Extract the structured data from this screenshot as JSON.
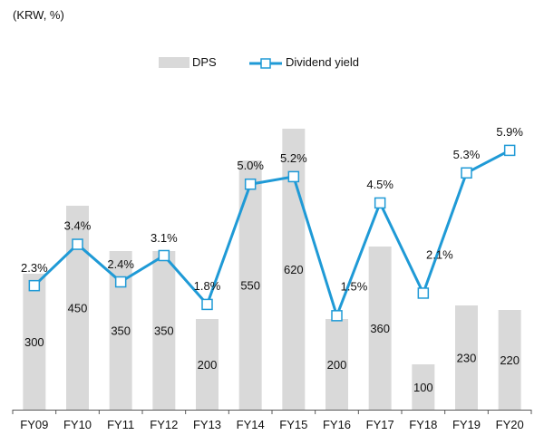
{
  "unit_label": "(KRW, %)",
  "legend": {
    "bar_label": "DPS",
    "line_label": "Dividend yield"
  },
  "colors": {
    "bar": "#d9d9d9",
    "line": "#1f9ad6",
    "marker_fill": "#ffffff",
    "axis": "#595959",
    "text": "#111111"
  },
  "chart_data": {
    "type": "bar",
    "title": "",
    "xlabel": "",
    "ylabel": "",
    "categories": [
      "FY09",
      "FY10",
      "FY11",
      "FY12",
      "FY13",
      "FY14",
      "FY15",
      "FY16",
      "FY17",
      "FY18",
      "FY19",
      "FY20"
    ],
    "series": [
      {
        "name": "DPS",
        "type": "bar",
        "values": [
          300,
          450,
          350,
          350,
          200,
          550,
          620,
          200,
          360,
          100,
          230,
          220
        ],
        "labels": [
          "300",
          "450",
          "350",
          "350",
          "200",
          "550",
          "620",
          "200",
          "360",
          "100",
          "230",
          "220"
        ]
      },
      {
        "name": "Dividend yield",
        "type": "line",
        "values": [
          2.3,
          3.4,
          2.4,
          3.1,
          1.8,
          5.0,
          5.2,
          1.5,
          4.5,
          2.1,
          5.3,
          5.9
        ],
        "labels": [
          "2.3%",
          "3.4%",
          "2.4%",
          "3.1%",
          "1.8%",
          "5.0%",
          "5.2%",
          "1.5%",
          "4.5%",
          "2.1%",
          "5.3%",
          "5.9%"
        ]
      }
    ],
    "ylim_dps": [
      0,
      680
    ],
    "ylim_yield": [
      -1.0,
      7.2
    ],
    "legend_position": "top",
    "grid": false
  }
}
